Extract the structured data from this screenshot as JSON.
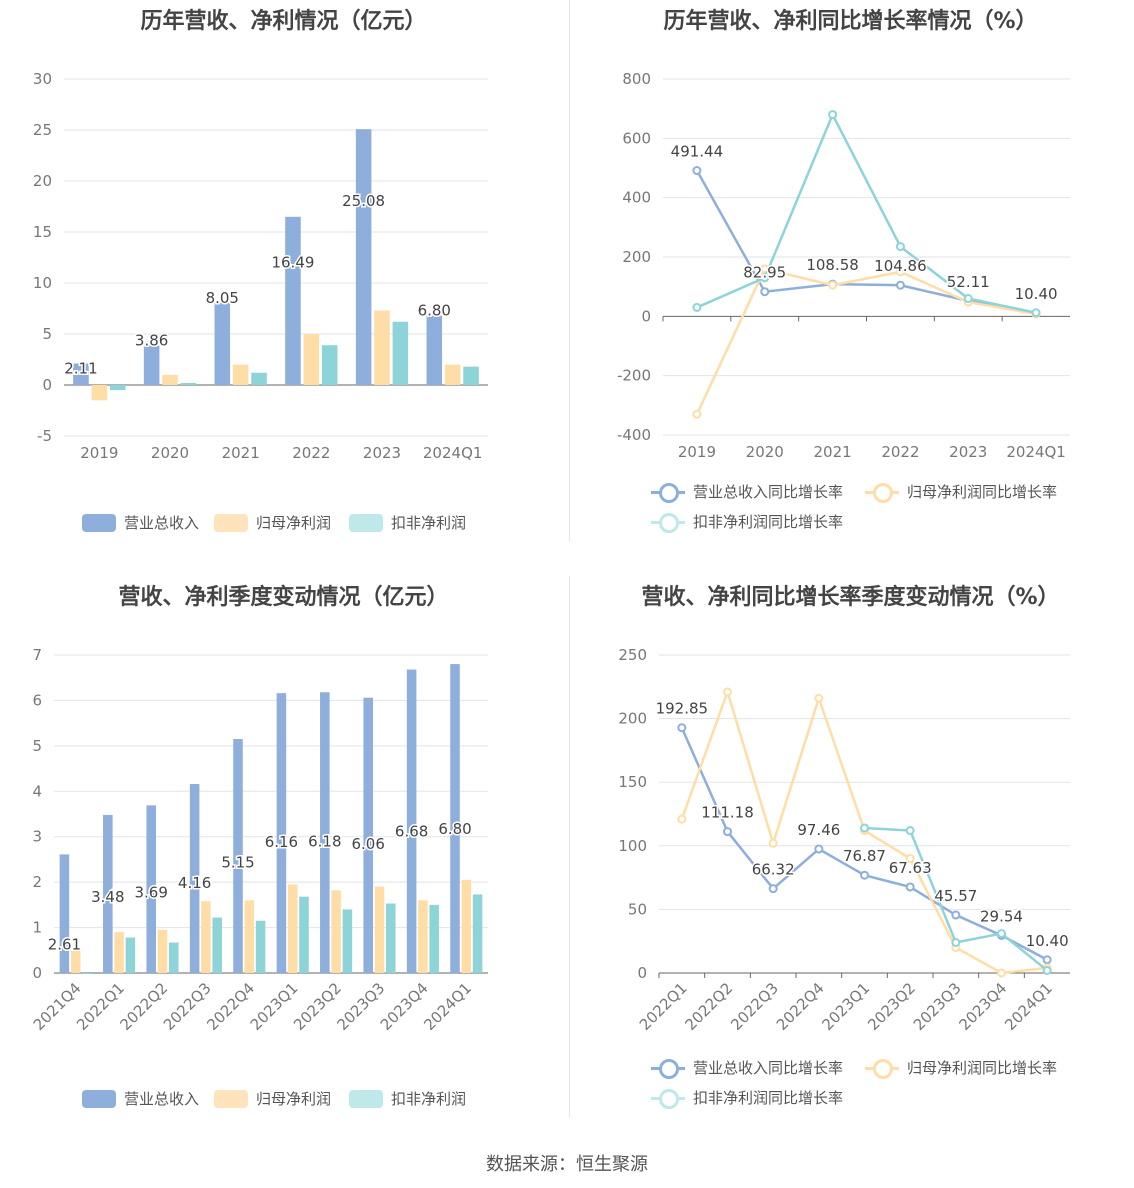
{
  "colors": {
    "revenue": "#8eaedb",
    "net_profit": "#ffdda6",
    "deducted_profit": "#8dd4d8"
  },
  "source": "数据来源：恒生聚源",
  "chart_data": [
    {
      "id": "annual-bar",
      "type": "bar",
      "title": "历年营收、净利情况（亿元）",
      "categories": [
        "2019",
        "2020",
        "2021",
        "2022",
        "2023",
        "2024Q1"
      ],
      "ylim": [
        -5,
        30
      ],
      "yticks": [
        -5,
        0,
        5,
        10,
        15,
        20,
        25,
        30
      ],
      "label_series": 0,
      "series": [
        {
          "name": "营业总收入",
          "color": "#8eaedb",
          "values": [
            2.11,
            3.86,
            8.05,
            16.49,
            25.08,
            6.8
          ],
          "labels": [
            "2.11",
            "3.86",
            "8.05",
            "16.49",
            "25.08",
            "6.80"
          ]
        },
        {
          "name": "归母净利润",
          "color": "#ffdda6",
          "values": [
            -1.5,
            1.0,
            2.0,
            5.0,
            7.3,
            2.0
          ]
        },
        {
          "name": "扣非净利润",
          "color": "#8dd4d8",
          "values": [
            -0.5,
            0.2,
            1.2,
            3.9,
            6.2,
            1.8
          ]
        }
      ]
    },
    {
      "id": "annual-line",
      "type": "line",
      "title": "历年营收、净利同比增长率情况（%）",
      "categories": [
        "2019",
        "2020",
        "2021",
        "2022",
        "2023",
        "2024Q1"
      ],
      "ylim": [
        -400,
        800
      ],
      "yticks": [
        -400,
        -200,
        0,
        200,
        400,
        600,
        800
      ],
      "label_series": 0,
      "series": [
        {
          "name": "营业总收入同比增长率",
          "color": "#8eaedb",
          "values": [
            491.44,
            82.95,
            108.58,
            104.86,
            52.11,
            10.4
          ],
          "labels": [
            "491.44",
            "82.95",
            "108.58",
            "104.86",
            "52.11",
            "10.40"
          ]
        },
        {
          "name": "归母净利润同比增长率",
          "color": "#ffdda6",
          "values": [
            -330,
            160,
            105,
            150,
            48,
            8
          ]
        },
        {
          "name": "扣非净利润同比增长率",
          "color": "#8dd4d8",
          "values": [
            30,
            130,
            680,
            235,
            60,
            12
          ]
        }
      ]
    },
    {
      "id": "quarter-bar",
      "type": "bar",
      "title": "营收、净利季度变动情况（亿元）",
      "categories": [
        "2021Q4",
        "2022Q1",
        "2022Q2",
        "2022Q3",
        "2022Q4",
        "2023Q1",
        "2023Q2",
        "2023Q3",
        "2023Q4",
        "2024Q1"
      ],
      "ylim": [
        0,
        7
      ],
      "yticks": [
        0,
        1,
        2,
        3,
        4,
        5,
        6,
        7
      ],
      "label_series": 0,
      "series": [
        {
          "name": "营业总收入",
          "color": "#8eaedb",
          "values": [
            2.61,
            3.48,
            3.69,
            4.16,
            5.15,
            6.16,
            6.18,
            6.06,
            6.68,
            6.8
          ],
          "labels": [
            "2.61",
            "3.48",
            "3.69",
            "4.16",
            "5.15",
            "6.16",
            "6.18",
            "6.06",
            "6.68",
            "6.80"
          ]
        },
        {
          "name": "归母净利润",
          "color": "#ffdda6",
          "values": [
            0.5,
            0.9,
            0.95,
            1.58,
            1.6,
            1.95,
            1.82,
            1.9,
            1.6,
            2.05
          ]
        },
        {
          "name": "扣非净利润",
          "color": "#8dd4d8",
          "values": [
            0.0,
            0.78,
            0.67,
            1.22,
            1.15,
            1.68,
            1.4,
            1.53,
            1.5,
            1.73
          ]
        }
      ]
    },
    {
      "id": "quarter-line",
      "type": "line",
      "title": "营收、净利同比增长率季度变动情况（%）",
      "categories": [
        "2022Q1",
        "2022Q2",
        "2022Q3",
        "2022Q4",
        "2023Q1",
        "2023Q2",
        "2023Q3",
        "2023Q4",
        "2024Q1"
      ],
      "ylim": [
        0,
        250
      ],
      "yticks": [
        0,
        50,
        100,
        150,
        200,
        250
      ],
      "label_series": 0,
      "series": [
        {
          "name": "营业总收入同比增长率",
          "color": "#8eaedb",
          "values": [
            192.85,
            111.18,
            66.32,
            97.46,
            76.87,
            67.63,
            45.57,
            29.54,
            10.4
          ],
          "labels": [
            "192.85",
            "111.18",
            "66.32",
            "97.46",
            "76.87",
            "67.63",
            "45.57",
            "29.54",
            "10.40"
          ]
        },
        {
          "name": "归母净利润同比增长率",
          "color": "#ffdda6",
          "values": [
            121,
            221,
            102,
            216,
            112,
            90,
            20,
            0,
            4
          ]
        },
        {
          "name": "扣非净利润同比增长率",
          "color": "#8dd4d8",
          "values": [
            null,
            null,
            null,
            null,
            114,
            112,
            24,
            31,
            2
          ]
        }
      ]
    }
  ]
}
